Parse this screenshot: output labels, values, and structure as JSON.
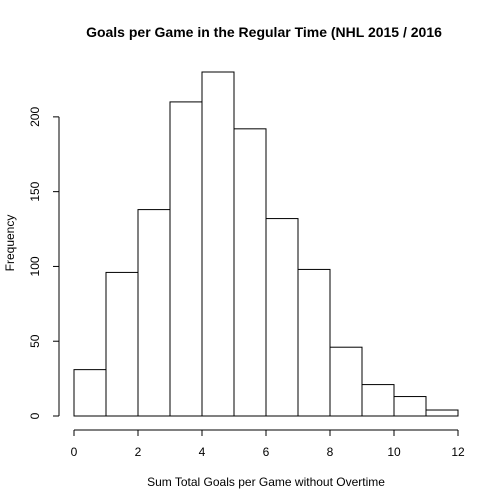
{
  "chart_data": {
    "type": "bar",
    "title": "Goals per Game in the Regular Time (NHL 2015 / 2016",
    "xlabel": "Sum Total Goals per Game without Overtime",
    "ylabel": "Frequency",
    "bins": [
      {
        "start": 0,
        "end": 1,
        "value": 31
      },
      {
        "start": 1,
        "end": 2,
        "value": 96
      },
      {
        "start": 2,
        "end": 3,
        "value": 138
      },
      {
        "start": 3,
        "end": 4,
        "value": 210
      },
      {
        "start": 4,
        "end": 5,
        "value": 230
      },
      {
        "start": 5,
        "end": 6,
        "value": 192
      },
      {
        "start": 6,
        "end": 7,
        "value": 132
      },
      {
        "start": 7,
        "end": 8,
        "value": 98
      },
      {
        "start": 8,
        "end": 9,
        "value": 46
      },
      {
        "start": 9,
        "end": 10,
        "value": 21
      },
      {
        "start": 10,
        "end": 11,
        "value": 13
      },
      {
        "start": 11,
        "end": 12,
        "value": 4
      }
    ],
    "xlim": [
      0,
      12
    ],
    "ylim": [
      0,
      230
    ],
    "x_ticks": [
      "0",
      "2",
      "4",
      "6",
      "8",
      "10",
      "12"
    ],
    "y_ticks": [
      "0",
      "50",
      "100",
      "150",
      "200"
    ],
    "grid": false,
    "legend": "none",
    "bar_fill": "#ffffff",
    "bar_stroke": "#000000"
  }
}
